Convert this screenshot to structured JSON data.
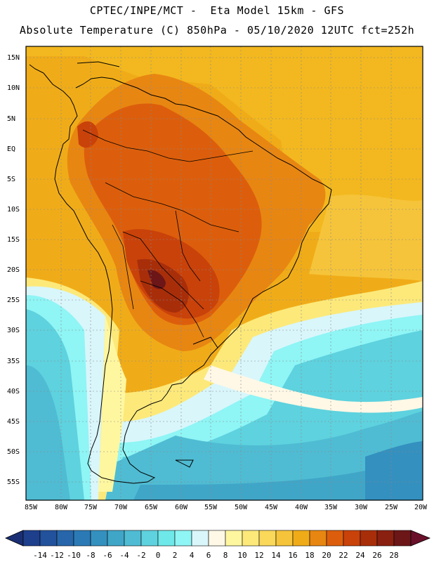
{
  "header": {
    "line1": "CPTEC/INPE/MCT -  Eta Model 15km - GFS",
    "line2": "Absolute Temperature (C) 850hPa - 05/10/2020 12UTC fct=252h"
  },
  "map": {
    "latitude_labels": [
      "15N",
      "10N",
      "5N",
      "EQ",
      "5S",
      "10S",
      "15S",
      "20S",
      "25S",
      "30S",
      "35S",
      "40S",
      "45S",
      "50S",
      "55S"
    ],
    "longitude_labels": [
      "85W",
      "80W",
      "75W",
      "70W",
      "65W",
      "60W",
      "55W",
      "50W",
      "45W",
      "40W",
      "35W",
      "30W",
      "25W",
      "20W"
    ],
    "region": "South America",
    "field": "temperature 850hPa"
  },
  "colorbar": {
    "labels": [
      "-14",
      "-12",
      "-10",
      "-8",
      "-6",
      "-4",
      "-2",
      "0",
      "2",
      "4",
      "6",
      "8",
      "10",
      "12",
      "14",
      "16",
      "18",
      "20",
      "22",
      "24",
      "26",
      "28"
    ],
    "colors": [
      "#1e3f8c",
      "#22529c",
      "#2766aa",
      "#2b7ab6",
      "#3490bf",
      "#40a6c8",
      "#4fbcd3",
      "#5ed2de",
      "#6ee8e8",
      "#8ff5f5",
      "#d9f6fb",
      "#fff8e6",
      "#fff7a0",
      "#fce97a",
      "#f9d85a",
      "#f5c43a",
      "#f0ac18",
      "#e88612",
      "#dc5e0c",
      "#c9420a",
      "#a82e0a",
      "#8a2010",
      "#6c1618"
    ],
    "underflow_color": "#1a2f73",
    "overflow_color": "#6a0f2a"
  }
}
